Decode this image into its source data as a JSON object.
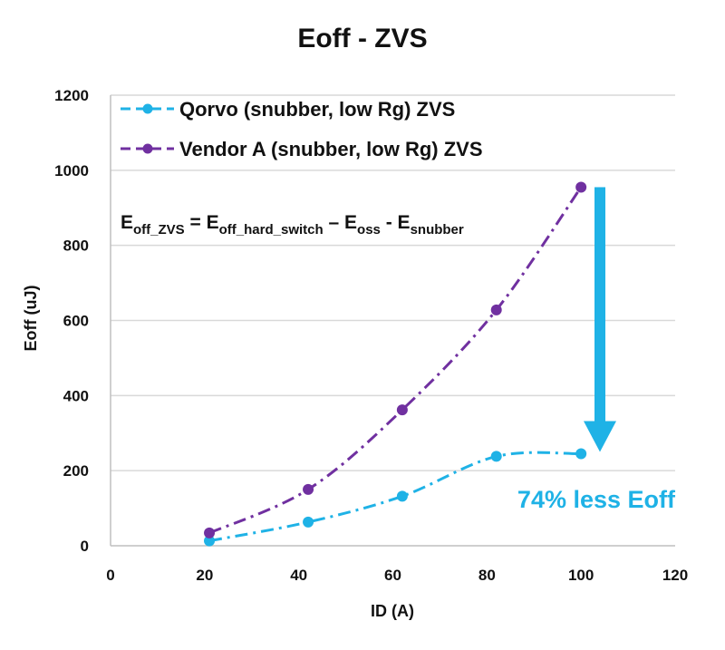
{
  "chart_data": {
    "type": "line",
    "title": "Eoff - ZVS",
    "xlabel": "ID (A)",
    "ylabel": "Eoff (uJ)",
    "xlim": [
      0,
      120
    ],
    "ylim": [
      0,
      1200
    ],
    "xticks": [
      0,
      20,
      40,
      60,
      80,
      100,
      120
    ],
    "yticks": [
      0,
      200,
      400,
      600,
      800,
      1000,
      1200
    ],
    "grid": "horizontal",
    "legend": "top-left",
    "series": [
      {
        "name": "Qorvo (snubber, low Rg) ZVS",
        "color": "#1fb2e6",
        "x": [
          21,
          42,
          62,
          82,
          100
        ],
        "y": [
          13,
          63,
          132,
          238,
          245
        ]
      },
      {
        "name": "Vendor A (snubber, low Rg) ZVS",
        "color": "#7030a0",
        "x": [
          21,
          42,
          62,
          82,
          100
        ],
        "y": [
          34,
          150,
          362,
          628,
          955
        ]
      }
    ],
    "annotations": {
      "formula": {
        "main": "E",
        "main_sub": "off_ZVS",
        "eq": " = E",
        "t1_sub": "off_hard_switch",
        "minus1": " – E",
        "t2_sub": "oss",
        "minus2": " - E",
        "t3_sub": "snubber"
      },
      "callout_text": "74% less Eoff",
      "callout_color": "#1fb2e6",
      "arrow_from_y": 955,
      "arrow_to_y": 245
    }
  }
}
